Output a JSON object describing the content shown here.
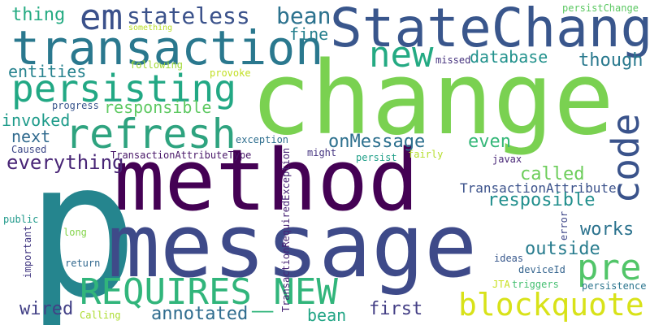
{
  "words": [
    {
      "text": "change",
      "color": "#7ad151"
    },
    {
      "text": "method",
      "color": "#440154"
    },
    {
      "text": "p",
      "color": "#25858e"
    },
    {
      "text": "message",
      "color": "#3e4a89"
    },
    {
      "text": "StateChange",
      "color": "#39568c"
    },
    {
      "text": "transaction",
      "color": "#2a788e"
    },
    {
      "text": "persisting",
      "color": "#22a884"
    },
    {
      "text": "refresh",
      "color": "#2ea37f"
    },
    {
      "text": "em",
      "color": "#3b518b"
    },
    {
      "text": "new",
      "color": "#24aa83"
    },
    {
      "text": "REQUIRES_NEW",
      "color": "#31b57b"
    },
    {
      "text": "blockquote",
      "color": "#d8e219"
    },
    {
      "text": "code",
      "color": "#3a538b"
    },
    {
      "text": "pre",
      "color": "#52c569"
    },
    {
      "text": "stateless",
      "color": "#3b528b"
    },
    {
      "text": "bean",
      "color": "#2c728e"
    },
    {
      "text": "thing",
      "color": "#25ab82"
    },
    {
      "text": "fine",
      "color": "#27808e"
    },
    {
      "text": "database",
      "color": "#21918c"
    },
    {
      "text": "though",
      "color": "#29798e"
    },
    {
      "text": "entities",
      "color": "#26828e"
    },
    {
      "text": "responsible",
      "color": "#5ec962"
    },
    {
      "text": "invoked",
      "color": "#1e9b8a"
    },
    {
      "text": "next",
      "color": "#306a8e"
    },
    {
      "text": "everything",
      "color": "#482576"
    },
    {
      "text": "onMessage",
      "color": "#2d708e"
    },
    {
      "text": "even",
      "color": "#35b779"
    },
    {
      "text": "called",
      "color": "#6ccd5a"
    },
    {
      "text": "TransactionAttribute",
      "color": "#3b528b"
    },
    {
      "text": "resposible",
      "color": "#218f8d"
    },
    {
      "text": "works",
      "color": "#2c738e"
    },
    {
      "text": "outside",
      "color": "#287c8e"
    },
    {
      "text": "annotated",
      "color": "#2f6c8e"
    },
    {
      "text": "wired",
      "color": "#424086"
    },
    {
      "text": "first",
      "color": "#433e85"
    },
    {
      "text": "bean",
      "color": "#21a585"
    },
    {
      "text": "TransactionAttributeType",
      "color": "#481668"
    },
    {
      "text": "TransactionRequiredException",
      "color": "#482475"
    },
    {
      "text": "exception",
      "color": "#2e6e8e"
    },
    {
      "text": "persistChange",
      "color": "#5cc863"
    },
    {
      "text": "something",
      "color": "#b8de29"
    },
    {
      "text": "following",
      "color": "#a2da37"
    },
    {
      "text": "missed",
      "color": "#46337e"
    },
    {
      "text": "provoke",
      "color": "#c2df23"
    },
    {
      "text": "progress",
      "color": "#39558c"
    },
    {
      "text": "Caused",
      "color": "#3e4989"
    },
    {
      "text": "might",
      "color": "#453581"
    },
    {
      "text": "persist",
      "color": "#1f9f88"
    },
    {
      "text": "fairly",
      "color": "#b5de2b"
    },
    {
      "text": "javax",
      "color": "#482677"
    },
    {
      "text": "error",
      "color": "#3f4889"
    },
    {
      "text": "public",
      "color": "#1f998a"
    },
    {
      "text": "long",
      "color": "#84d44b"
    },
    {
      "text": "important",
      "color": "#443a83"
    },
    {
      "text": "return",
      "color": "#31688e"
    },
    {
      "text": "ideas",
      "color": "#38588c"
    },
    {
      "text": "deviceId",
      "color": "#33638d"
    },
    {
      "text": "JTA",
      "color": "#c8e020"
    },
    {
      "text": "triggers",
      "color": "#44bf70"
    },
    {
      "text": "persistence",
      "color": "#2b758e"
    },
    {
      "text": "Calling",
      "color": "#addc30"
    }
  ]
}
